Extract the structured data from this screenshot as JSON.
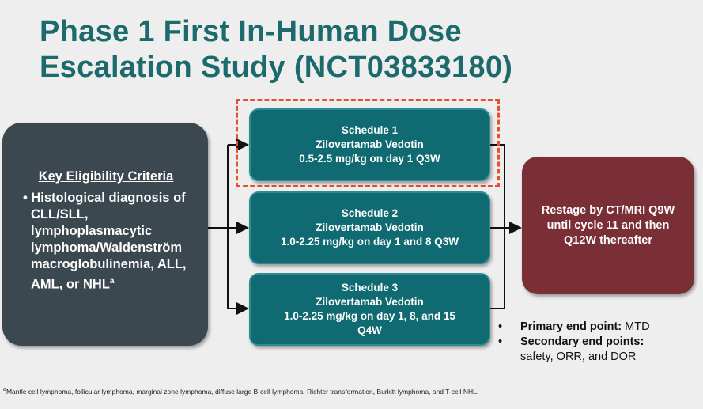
{
  "title": {
    "line1": "Phase 1 First In-Human Dose",
    "line2": "Escalation Study (NCT03833180)"
  },
  "eligibility": {
    "heading": "Key Eligibility Criteria",
    "bullet": "Histological diagnosis of CLL/SLL, lymphoplasmacytic lymphoma/Waldenström macroglobulinemia, ALL, AML, or NHL",
    "footnote_marker": "a"
  },
  "schedules": [
    {
      "name": "Schedule 1",
      "drug": "Zilovertamab Vedotin",
      "dosing": "0.5-2.5 mg/kg on day 1 Q3W",
      "highlighted": true
    },
    {
      "name": "Schedule 2",
      "drug": "Zilovertamab Vedotin",
      "dosing": "1.0-2.25 mg/kg on day 1 and 8 Q3W",
      "highlighted": false
    },
    {
      "name": "Schedule 3",
      "drug": "Zilovertamab Vedotin",
      "dosing": "1.0-2.25 mg/kg on day 1, 8, and 15 Q4W",
      "highlighted": false
    }
  ],
  "restage": "Restage by CT/MRI Q9W until cycle 11 and then Q12W thereafter",
  "endpoints": {
    "primary_label": "Primary end point:",
    "primary_value": "MTD",
    "secondary_label": "Secondary end points:",
    "secondary_value": "safety, ORR, and DOR"
  },
  "footnote": {
    "marker": "a",
    "text": "Mantle cell lymphoma, follicular lymphoma, marginal zone lymphoma, diffuse large B-cell lymphoma, Richter transformation, Burkitt lymphoma, and T-cell NHL."
  },
  "colors": {
    "title": "#1d6a6c",
    "eligibility": "#3c4850",
    "schedule": "#0f6a71",
    "restage": "#7a2e35",
    "highlight": "#e8502c"
  }
}
